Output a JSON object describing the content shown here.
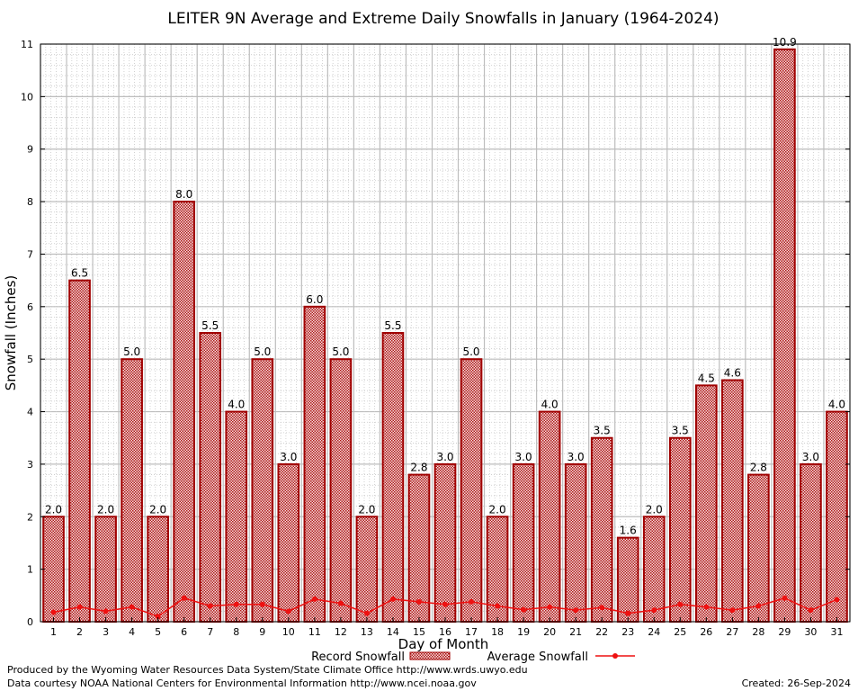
{
  "chart_data": {
    "type": "bar",
    "title": "LEITER 9N Average and Extreme Daily Snowfalls in January (1964-2024)",
    "xlabel": "Day of Month",
    "ylabel": "Snowfall (Inches)",
    "ylim": [
      0,
      11
    ],
    "yticks": [
      "0",
      "1",
      "2",
      "3",
      "4",
      "5",
      "6",
      "7",
      "8",
      "9",
      "10",
      "11"
    ],
    "categories": [
      "1",
      "2",
      "3",
      "4",
      "5",
      "6",
      "7",
      "8",
      "9",
      "10",
      "11",
      "12",
      "13",
      "14",
      "15",
      "16",
      "17",
      "18",
      "19",
      "20",
      "21",
      "22",
      "23",
      "24",
      "25",
      "26",
      "27",
      "28",
      "29",
      "30",
      "31"
    ],
    "series": [
      {
        "name": "Record Snowfall",
        "values": [
          2.0,
          6.5,
          2.0,
          5.0,
          2.0,
          8.0,
          5.5,
          4.0,
          5.0,
          3.0,
          6.0,
          5.0,
          2.0,
          5.5,
          2.8,
          3.0,
          5.0,
          2.0,
          3.0,
          4.0,
          3.0,
          3.5,
          1.6,
          2.0,
          3.5,
          4.5,
          4.6,
          2.8,
          10.9,
          3.0,
          4.0
        ],
        "labels": [
          "2.0",
          "6.5",
          "2.0",
          "5.0",
          "2.0",
          "8.0",
          "5.5",
          "4.0",
          "5.0",
          "3.0",
          "6.0",
          "5.0",
          "2.0",
          "5.5",
          "2.8",
          "3.0",
          "5.0",
          "2.0",
          "3.0",
          "4.0",
          "3.0",
          "3.5",
          "1.6",
          "2.0",
          "3.5",
          "4.5",
          "4.6",
          "2.8",
          "10.9",
          "3.0",
          "4.0"
        ]
      },
      {
        "name": "Average Snowfall",
        "values": [
          0.18,
          0.28,
          0.2,
          0.28,
          0.1,
          0.45,
          0.3,
          0.33,
          0.33,
          0.2,
          0.43,
          0.35,
          0.16,
          0.43,
          0.38,
          0.33,
          0.38,
          0.3,
          0.23,
          0.28,
          0.22,
          0.27,
          0.16,
          0.22,
          0.33,
          0.28,
          0.22,
          0.3,
          0.45,
          0.22,
          0.42
        ]
      }
    ],
    "grid": true,
    "legend": "bottom-center"
  },
  "colors": {
    "bar_edge": "#a00000",
    "bar_fill_dot": "#b01818",
    "avg_line": "#ee1111",
    "grid_major": "#bdbdbd",
    "grid_minor": "#c8c8c8"
  },
  "footer": {
    "producer": "Produced by the Wyoming Water Resources Data System/State Climate Office http://www.wrds.uwyo.edu",
    "courtesy": "Data courtesy NOAA National Centers for Environmental Information http://www.ncei.noaa.gov",
    "created": "Created:  26-Sep-2024"
  }
}
